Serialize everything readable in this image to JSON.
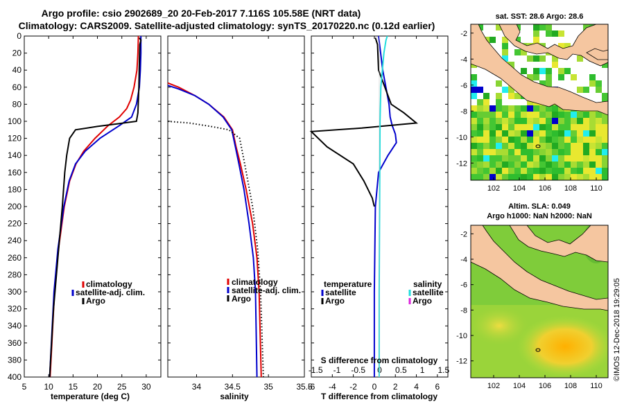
{
  "title": {
    "line1": "Argo profile: csio 2902689_20 20-Feb-2017 7.116S 105.58E (NRT data)",
    "line2": "Climatology: CARS2009. Satellite-adjusted climatology: synTS_20170220.nc (0.12d earlier)"
  },
  "credit": "©IMOS 12-Dec-2018 19:29:05",
  "colors": {
    "climatology": "#e00000",
    "satellite": "#0000cc",
    "argo": "#000000",
    "sat_salinity": "#22dddd",
    "sat_argo_s": "#dd22dd",
    "land": "#f5c6a0",
    "sea_green": "#66cc33",
    "sea_yellow": "#e8e830",
    "sea_cyan": "#22eeee"
  },
  "chart_data": [
    {
      "id": "temperature",
      "type": "line",
      "xlabel": "temperature (deg C)",
      "ylabel": "",
      "xlim": [
        5,
        33
      ],
      "ylim": [
        400,
        0
      ],
      "xticks": [
        5,
        10,
        15,
        20,
        25,
        30
      ],
      "yticks": [
        0,
        20,
        40,
        60,
        80,
        100,
        120,
        140,
        160,
        180,
        200,
        220,
        240,
        260,
        280,
        300,
        320,
        340,
        360,
        380,
        400
      ],
      "legend": [
        "climatology",
        "satellite-adj. clim.",
        "Argo"
      ],
      "legend_position": "lower-right",
      "series": [
        {
          "name": "climatology",
          "depth": [
            0,
            20,
            40,
            60,
            75,
            85,
            95,
            105,
            120,
            135,
            150,
            170,
            200,
            250,
            300,
            400
          ],
          "values": [
            28.4,
            28.3,
            28.1,
            27.5,
            26.8,
            26,
            24.5,
            22.2,
            19.5,
            17.2,
            15.6,
            14.3,
            13.2,
            12,
            11.2,
            10.3
          ]
        },
        {
          "name": "satellite-adj. clim.",
          "depth": [
            0,
            20,
            40,
            60,
            80,
            95,
            105,
            120,
            135,
            150,
            170,
            200,
            250,
            300,
            400
          ],
          "values": [
            28.9,
            28.9,
            28.8,
            28.6,
            28,
            27,
            24.5,
            20.5,
            17.5,
            15.5,
            14.2,
            13.1,
            11.9,
            11.1,
            10.2
          ]
        },
        {
          "name": "Argo",
          "depth": [
            2,
            5,
            10,
            30,
            60,
            90,
            100,
            103,
            106,
            110,
            120,
            140,
            160,
            200,
            260,
            320,
            400
          ],
          "values": [
            28.6,
            28.9,
            28.7,
            28.6,
            28.5,
            28.3,
            28,
            24,
            20,
            15.5,
            14.3,
            13.7,
            13.3,
            12.8,
            11.9,
            11,
            10.2
          ]
        }
      ]
    },
    {
      "id": "salinity",
      "type": "line",
      "xlabel": "salinity",
      "xlim": [
        33.6,
        35.5
      ],
      "ylim": [
        400,
        0
      ],
      "xticks": [
        34,
        34.5,
        35,
        35.5
      ],
      "xticklabels": [
        "34",
        "34.5",
        "35",
        "35.5"
      ],
      "legend": [
        "climatology",
        "satellite-adj. clim.",
        "Argo"
      ],
      "legend_position": "lower-right",
      "series": [
        {
          "name": "climatology",
          "depth": [
            55,
            60,
            70,
            80,
            95,
            110,
            130,
            150,
            180,
            220,
            260,
            300,
            400
          ],
          "values": [
            33.6,
            33.75,
            33.98,
            34.17,
            34.38,
            34.5,
            34.55,
            34.61,
            34.69,
            34.78,
            34.84,
            34.87,
            34.9
          ]
        },
        {
          "name": "satellite-adj. clim.",
          "depth": [
            58,
            62,
            70,
            80,
            95,
            110,
            130,
            150,
            180,
            220,
            260,
            300,
            400
          ],
          "values": [
            33.6,
            33.75,
            33.98,
            34.17,
            34.37,
            34.49,
            34.54,
            34.59,
            34.66,
            34.73,
            34.79,
            34.82,
            34.84
          ]
        },
        {
          "name": "Argo",
          "depth": [
            100,
            102,
            106,
            110,
            120,
            150,
            200,
            250,
            300,
            400
          ],
          "values": [
            33.6,
            33.9,
            34.2,
            34.45,
            34.6,
            34.67,
            34.78,
            34.85,
            34.89,
            34.93
          ]
        }
      ]
    },
    {
      "id": "differences",
      "type": "line",
      "xlabel": "T difference from climatology",
      "xlabel_top": "S difference from climatology",
      "xlim": [
        -6,
        7
      ],
      "xticks": [
        -6,
        -4,
        -2,
        0,
        2,
        4,
        6
      ],
      "xticks_top": [
        -1.5,
        -1,
        -0.5,
        0,
        0.5,
        1,
        1.5
      ],
      "ylim": [
        400,
        0
      ],
      "legend": [
        "temperature",
        "satellite",
        "Argo",
        "salinity",
        "satellite",
        "Argo"
      ],
      "series": [
        {
          "name": "temperature satellite",
          "depth": [
            0,
            20,
            40,
            60,
            80,
            95,
            105,
            115,
            125,
            140,
            160,
            200,
            300,
            400
          ],
          "values": [
            0.4,
            0.6,
            0.8,
            1.1,
            1.4,
            1.5,
            1.7,
            2,
            2.1,
            1.3,
            0.4,
            0.1,
            0,
            0
          ]
        },
        {
          "name": "temperature Argo",
          "depth": [
            2,
            10,
            40,
            80,
            90,
            102,
            108,
            112,
            130,
            150,
            170,
            190,
            200
          ],
          "values": [
            0.1,
            0.3,
            0.4,
            1.6,
            2.8,
            4,
            -1.2,
            -6,
            -4.5,
            -2,
            -1,
            -0.2,
            0
          ]
        },
        {
          "name": "salinity satellite",
          "depth": [
            0,
            5,
            20,
            60,
            100,
            200,
            300,
            400
          ],
          "values": [
            0.18,
            0.15,
            0.1,
            0.03,
            0.01,
            0,
            -0.01,
            -0.01
          ]
        },
        {
          "name": "salinity Argo",
          "depth": [],
          "values": []
        }
      ]
    }
  ],
  "maps": {
    "top": {
      "title": "sat. SST: 28.6 Argo: 28.6",
      "yticks": [
        -2,
        -4,
        -6,
        -8,
        -10,
        -12
      ],
      "xticks": [
        102,
        104,
        106,
        108,
        110
      ]
    },
    "bottom": {
      "title1": "Altim. SLA: 0.049",
      "title2": "Argo h1000: NaN h2000: NaN",
      "yticks": [
        -2,
        -4,
        -6,
        -8,
        -10,
        -12
      ],
      "xticks": [
        102,
        104,
        106,
        108,
        110
      ]
    }
  }
}
